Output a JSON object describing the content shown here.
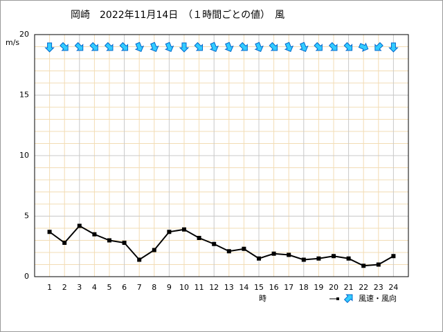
{
  "chart_data": {
    "type": "line",
    "title": "岡崎　2022年11月14日　（１時間ごとの値）　風",
    "y_unit": "m/s",
    "x_label": "時",
    "legend_label": "風速・風向",
    "x": [
      1,
      2,
      3,
      4,
      5,
      6,
      7,
      8,
      9,
      10,
      11,
      12,
      13,
      14,
      15,
      16,
      17,
      18,
      19,
      20,
      21,
      22,
      23,
      24
    ],
    "xlim": [
      0,
      25
    ],
    "series": [
      {
        "name": "風速",
        "color": "#000000",
        "values": [
          3.7,
          2.8,
          4.2,
          3.5,
          3.0,
          2.8,
          1.4,
          2.2,
          3.7,
          3.9,
          3.2,
          2.7,
          2.1,
          2.3,
          1.5,
          1.9,
          1.8,
          1.4,
          1.5,
          1.7,
          1.5,
          0.9,
          1.0,
          1.7
        ]
      }
    ],
    "directions": [
      0,
      315,
      315,
      315,
      315,
      315,
      337.5,
      337.5,
      337.5,
      0,
      315,
      337.5,
      337.5,
      315,
      337.5,
      315,
      337.5,
      337.5,
      315,
      315,
      315,
      292.5,
      45,
      0
    ],
    "arrow_color": "#33ccff",
    "ylim": [
      0,
      20
    ],
    "yticks": [
      0,
      5,
      10,
      15,
      20
    ],
    "yminorticks": [
      1,
      2,
      3,
      4,
      6,
      7,
      8,
      9,
      11,
      12,
      13,
      14,
      16,
      17,
      18,
      19
    ],
    "grid": true
  }
}
